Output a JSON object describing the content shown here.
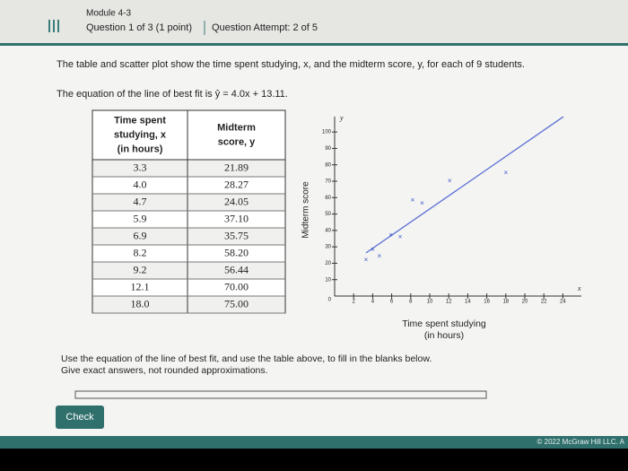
{
  "header": {
    "module": "Module 4-3",
    "question": "Question 1 of 3 (1 point)",
    "attempt": "Question Attempt: 2 of 5"
  },
  "prompt": "The table and scatter plot show the time spent studying, x, and the midterm score, y, for each of 9 students.",
  "equation": "The equation of the line of best fit is ŷ = 4.0x + 13.11.",
  "table": {
    "headers": [
      [
        "Time spent",
        "studying, x",
        "(in hours)"
      ],
      [
        "Midterm",
        "score, y"
      ]
    ],
    "rows": [
      [
        "3.3",
        "21.89"
      ],
      [
        "4.0",
        "28.27"
      ],
      [
        "4.7",
        "24.05"
      ],
      [
        "5.9",
        "37.10"
      ],
      [
        "6.9",
        "35.75"
      ],
      [
        "8.2",
        "58.20"
      ],
      [
        "9.2",
        "56.44"
      ],
      [
        "12.1",
        "70.00"
      ],
      [
        "18.0",
        "75.00"
      ]
    ]
  },
  "chart_data": {
    "type": "scatter",
    "x_label": [
      "Time spent studying",
      "(in hours)"
    ],
    "y_label": "Midterm score",
    "x_axis_letter": "x",
    "y_axis_letter": "y",
    "origin_label": "0",
    "x": [
      3.3,
      4.0,
      4.7,
      5.9,
      6.9,
      8.2,
      9.2,
      12.1,
      18.0
    ],
    "values": [
      21.89,
      28.27,
      24.05,
      37.1,
      35.75,
      58.2,
      56.44,
      70.0,
      75.0
    ],
    "marker": "×",
    "color": "#3b57c9",
    "line_of_best_fit": {
      "slope": 4.0,
      "intercept": 13.11,
      "color": "#5b6fd6"
    },
    "xlim": [
      0,
      25
    ],
    "ylim": [
      0,
      105
    ],
    "xticks": [
      2,
      4,
      6,
      8,
      10,
      12,
      14,
      16,
      18,
      20,
      22,
      24
    ],
    "yticks": [
      10,
      20,
      30,
      40,
      50,
      60,
      70,
      80,
      90,
      100
    ]
  },
  "instructions": [
    "Use the equation of the line of best fit, and use the table above, to fill in the blanks below.",
    "Give exact answers, not rounded approximations."
  ],
  "button": "Check",
  "footer": "© 2022 McGraw Hill LLC. A"
}
